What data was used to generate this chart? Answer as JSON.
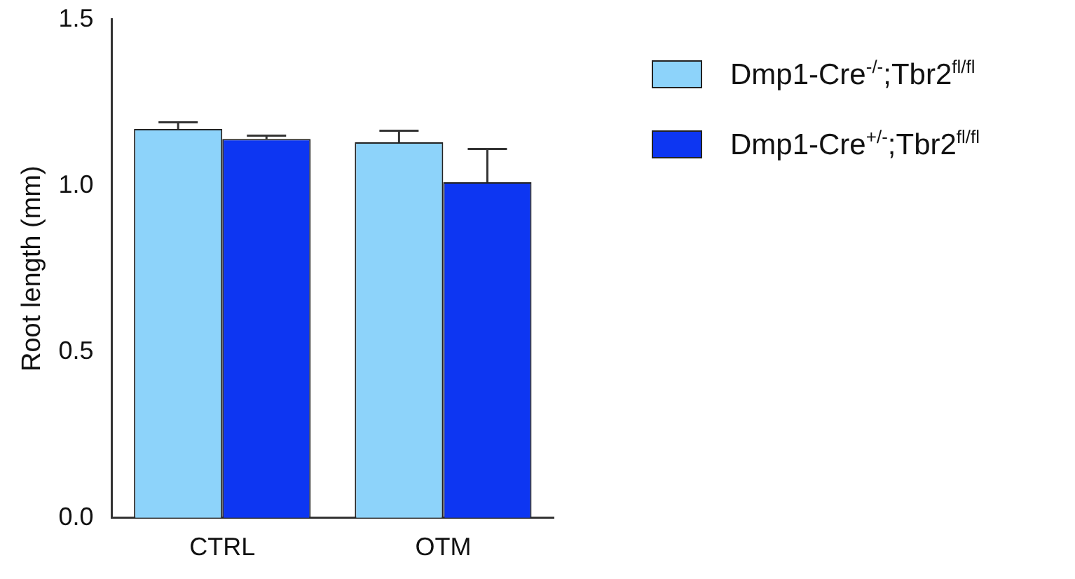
{
  "chart_data": {
    "type": "bar",
    "ylabel": "Root length (mm)",
    "categories": [
      "CTRL",
      "OTM"
    ],
    "series": [
      {
        "name": "Dmp1-Cre$^{-/-}$;Tbr2$^{fl/fl}$",
        "color": "#8dd3fa",
        "values": [
          1.17,
          1.13
        ],
        "errors": [
          [
            1.17,
            1.19
          ],
          [
            1.13,
            1.165
          ]
        ]
      },
      {
        "name": "Dmp1-Cre$^{+/-}$;Tbr2$^{fl/fl}$",
        "color": "#0d36f2",
        "values": [
          1.14,
          1.01
        ],
        "errors": [
          [
            1.14,
            1.15
          ],
          [
            1.01,
            1.11
          ]
        ]
      }
    ],
    "ylim": [
      0,
      1.5
    ],
    "yticks": [
      {
        "value": 0,
        "label": "0.0"
      },
      {
        "value": 0.5,
        "label": "0.5"
      },
      {
        "value": 1,
        "label": "1.0"
      },
      {
        "value": 1.5,
        "label": "1.5"
      }
    ],
    "grid": false,
    "legend": "right"
  }
}
